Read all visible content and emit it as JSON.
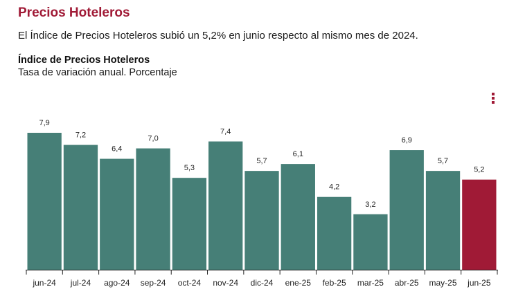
{
  "header": {
    "title": "Precios Hoteleros",
    "summary": "El Índice de Precios Hoteleros subió un 5,2% en junio respecto al mismo mes de 2024."
  },
  "menu": {
    "icon": "vertical-dots-icon"
  },
  "colors": {
    "title": "#a01a36",
    "bar": "#467f77",
    "highlight": "#a01a36"
  },
  "chart_data": {
    "type": "bar",
    "title": "Índice de Precios Hoteleros",
    "subtitle": "Tasa de variación anual. Porcentaje",
    "categories": [
      "jun-24",
      "jul-24",
      "ago-24",
      "sep-24",
      "oct-24",
      "nov-24",
      "dic-24",
      "ene-25",
      "feb-25",
      "mar-25",
      "abr-25",
      "may-25",
      "jun-25"
    ],
    "values": [
      7.9,
      7.2,
      6.4,
      7.0,
      5.3,
      7.4,
      5.7,
      6.1,
      4.2,
      3.2,
      6.9,
      5.7,
      5.2
    ],
    "value_labels": [
      "7,9",
      "7,2",
      "6,4",
      "7,0",
      "5,3",
      "7,4",
      "5,7",
      "6,1",
      "4,2",
      "3,2",
      "6,9",
      "5,7",
      "5,2"
    ],
    "highlighted_category": "jun-25",
    "ylim": [
      0,
      7.9
    ],
    "grid": false,
    "xlabel": "",
    "ylabel": ""
  }
}
